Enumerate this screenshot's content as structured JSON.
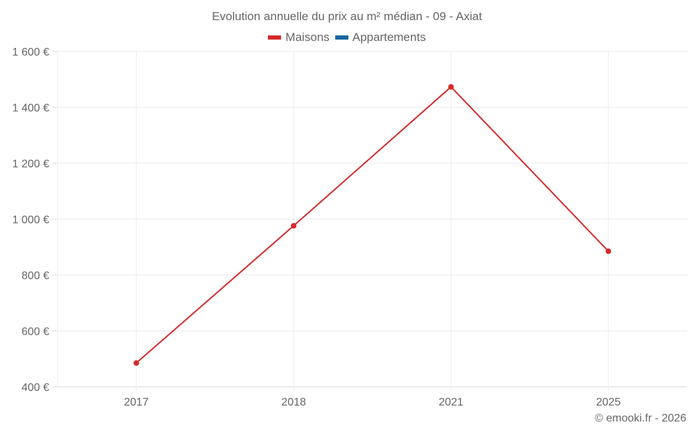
{
  "chart_data": {
    "type": "line",
    "title": "Evolution annuelle du prix au m² médian - 09 - Axiat",
    "xlabel": "",
    "ylabel": "",
    "categories": [
      "2017",
      "2018",
      "2021",
      "2025"
    ],
    "series": [
      {
        "name": "Maisons",
        "color": "#d42a2a",
        "values": [
          485,
          976,
          1473,
          885
        ]
      },
      {
        "name": "Appartements",
        "color": "#13659e",
        "values": []
      }
    ],
    "ylim": [
      400,
      1600
    ],
    "yticks": [
      400,
      600,
      800,
      1000,
      1200,
      1400,
      1600
    ],
    "ytick_labels": [
      "400 €",
      "600 €",
      "800 €",
      "1 000 €",
      "1 200 €",
      "1 400 €",
      "1 600 €"
    ],
    "grid": true,
    "legend_position": "top"
  },
  "header": {
    "title": "Evolution annuelle du prix au m² médian - 09 - Axiat"
  },
  "legend": {
    "items": [
      {
        "label": "Maisons",
        "color": "#d42a2a"
      },
      {
        "label": "Appartements",
        "color": "#13659e"
      }
    ]
  },
  "footer": {
    "credit": "© emooki.fr - 2026"
  }
}
